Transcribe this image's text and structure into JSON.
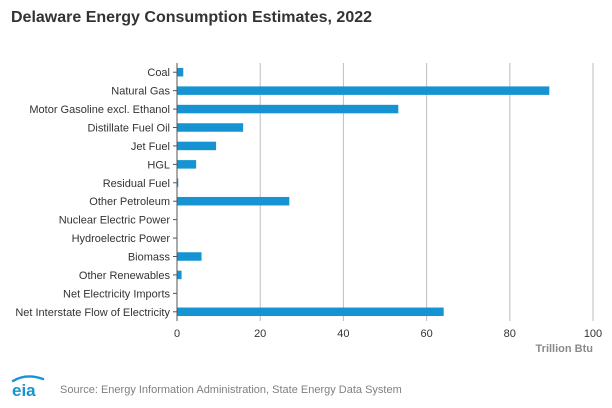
{
  "header": {
    "title": "Delaware Energy Consumption Estimates, 2022"
  },
  "footer": {
    "source": "Source: Energy Information Administration, State Energy Data System",
    "logo_text": "eia"
  },
  "colors": {
    "bar": "#1693d2",
    "grid": "#bdbdbd",
    "axis": "#555555",
    "label": "#333333",
    "unit": "#8a8a8a"
  },
  "chart_data": {
    "type": "bar",
    "orientation": "horizontal",
    "title": "Delaware Energy Consumption Estimates, 2022",
    "xlabel": "Trillion Btu",
    "ylabel": "",
    "xlim": [
      0,
      100
    ],
    "xticks": [
      0,
      20,
      40,
      60,
      80,
      100
    ],
    "grid": true,
    "categories": [
      "Coal",
      "Natural Gas",
      "Motor Gasoline excl. Ethanol",
      "Distillate Fuel Oil",
      "Jet Fuel",
      "HGL",
      "Residual Fuel",
      "Other Petroleum",
      "Nuclear Electric Power",
      "Hydroelectric Power",
      "Biomass",
      "Other Renewables",
      "Net Electricity Imports",
      "Net Interstate Flow of Electricity"
    ],
    "values": [
      1.5,
      89.5,
      53.2,
      15.9,
      9.4,
      4.6,
      0.3,
      27.0,
      0,
      0,
      5.9,
      1.1,
      0,
      64.1
    ]
  }
}
